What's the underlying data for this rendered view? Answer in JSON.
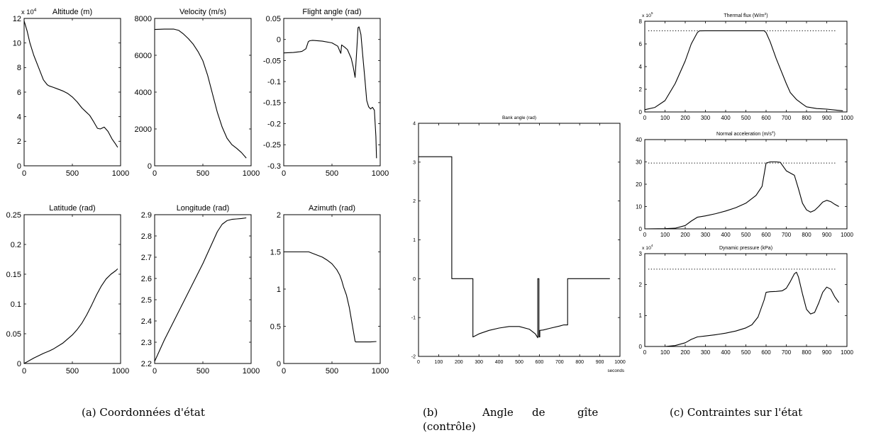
{
  "captions": {
    "a": "(a) Coordonnées d'état",
    "b_1": "(b)",
    "b_2": "Angle",
    "b_3": "de",
    "b_4": "gîte",
    "b_5": "(contrôle)",
    "c": "(c) Contraintes sur l'état"
  },
  "chart_data": [
    {
      "id": "altitude",
      "type": "line",
      "title": "Altitude (m)",
      "xlim": [
        0,
        1000
      ],
      "ylim": [
        0,
        120000
      ],
      "scale_label": "x 10",
      "scale_exp": "4",
      "xticks": [
        0,
        500,
        1000
      ],
      "xtick_labels": [
        "0",
        "500",
        "1000"
      ],
      "yticks": [
        0,
        20000,
        40000,
        60000,
        80000,
        100000,
        120000
      ],
      "ytick_labels": [
        "0",
        "2",
        "4",
        "6",
        "8",
        "10",
        "12"
      ],
      "x": [
        0,
        30,
        60,
        100,
        150,
        200,
        240,
        260,
        300,
        350,
        400,
        450,
        500,
        550,
        580,
        600,
        640,
        680,
        720,
        760,
        790,
        830,
        870,
        910,
        950,
        970
      ],
      "y": [
        118000,
        110000,
        100000,
        90000,
        80000,
        70000,
        66000,
        65000,
        64000,
        62500,
        61000,
        59000,
        56000,
        52000,
        49000,
        47000,
        44000,
        41000,
        36000,
        30500,
        30000,
        31500,
        28000,
        22000,
        17500,
        15000
      ]
    },
    {
      "id": "velocity",
      "type": "line",
      "title": "Velocity (m/s)",
      "xlim": [
        0,
        1000
      ],
      "ylim": [
        0,
        8000
      ],
      "xticks": [
        0,
        500,
        1000
      ],
      "xtick_labels": [
        "0",
        "500",
        "1000"
      ],
      "yticks": [
        0,
        2000,
        4000,
        6000,
        8000
      ],
      "ytick_labels": [
        "0",
        "2000",
        "4000",
        "6000",
        "8000"
      ],
      "x": [
        0,
        100,
        200,
        250,
        300,
        350,
        400,
        450,
        500,
        550,
        600,
        650,
        700,
        750,
        800,
        850,
        900,
        950
      ],
      "y": [
        7400,
        7420,
        7420,
        7350,
        7150,
        6900,
        6600,
        6200,
        5700,
        4900,
        3900,
        2900,
        2100,
        1500,
        1150,
        950,
        720,
        420
      ]
    },
    {
      "id": "flight_angle",
      "type": "line",
      "title": "Flight angle (rad)",
      "xlim": [
        0,
        1000
      ],
      "ylim": [
        -0.3,
        0.05
      ],
      "xticks": [
        0,
        500,
        1000
      ],
      "xtick_labels": [
        "0",
        "500",
        "1000"
      ],
      "yticks": [
        -0.3,
        -0.25,
        -0.2,
        -0.15,
        -0.1,
        -0.05,
        0,
        0.05
      ],
      "ytick_labels": [
        "-0.3",
        "-0.25",
        "-0.2",
        "-0.15",
        "-0.1",
        "-0.05",
        "0",
        "0.05"
      ],
      "x": [
        0,
        100,
        170,
        190,
        230,
        255,
        270,
        300,
        400,
        500,
        560,
        585,
        592,
        600,
        630,
        660,
        700,
        720,
        740,
        760,
        770,
        780,
        800,
        820,
        840,
        860,
        880,
        900,
        920,
        940,
        955,
        962
      ],
      "y": [
        -0.032,
        -0.031,
        -0.029,
        -0.028,
        -0.022,
        -0.005,
        -0.003,
        -0.002,
        -0.004,
        -0.008,
        -0.016,
        -0.03,
        -0.033,
        -0.013,
        -0.018,
        -0.024,
        -0.045,
        -0.065,
        -0.09,
        -0.012,
        0.028,
        0.03,
        0.012,
        -0.04,
        -0.09,
        -0.145,
        -0.16,
        -0.165,
        -0.161,
        -0.168,
        -0.23,
        -0.282
      ]
    },
    {
      "id": "latitude",
      "type": "line",
      "title": "Latitude (rad)",
      "xlim": [
        0,
        1000
      ],
      "ylim": [
        0,
        0.25
      ],
      "xticks": [
        0,
        500,
        1000
      ],
      "xtick_labels": [
        "0",
        "500",
        "1000"
      ],
      "yticks": [
        0,
        0.05,
        0.1,
        0.15,
        0.2,
        0.25
      ],
      "ytick_labels": [
        "0",
        "0.05",
        "0.1",
        "0.15",
        "0.2",
        "0.25"
      ],
      "x": [
        0,
        100,
        200,
        260,
        300,
        400,
        500,
        550,
        600,
        650,
        700,
        750,
        800,
        850,
        900,
        950,
        970
      ],
      "y": [
        0,
        0.009,
        0.017,
        0.021,
        0.024,
        0.034,
        0.048,
        0.057,
        0.068,
        0.082,
        0.098,
        0.115,
        0.13,
        0.142,
        0.15,
        0.156,
        0.159
      ]
    },
    {
      "id": "longitude",
      "type": "line",
      "title": "Longitude (rad)",
      "xlim": [
        0,
        1000
      ],
      "ylim": [
        2.2,
        2.9
      ],
      "xticks": [
        0,
        500,
        1000
      ],
      "xtick_labels": [
        "0",
        "500",
        "1000"
      ],
      "yticks": [
        2.2,
        2.3,
        2.4,
        2.5,
        2.6,
        2.7,
        2.8,
        2.9
      ],
      "ytick_labels": [
        "2.2",
        "2.3",
        "2.4",
        "2.5",
        "2.6",
        "2.7",
        "2.8",
        "2.9"
      ],
      "x": [
        0,
        100,
        200,
        300,
        400,
        500,
        550,
        600,
        650,
        700,
        750,
        800,
        850,
        900,
        950
      ],
      "y": [
        2.21,
        2.31,
        2.4,
        2.49,
        2.58,
        2.67,
        2.72,
        2.77,
        2.82,
        2.855,
        2.872,
        2.878,
        2.88,
        2.882,
        2.885
      ]
    },
    {
      "id": "azimuth",
      "type": "line",
      "title": "Azimuth (rad)",
      "xlim": [
        0,
        1000
      ],
      "ylim": [
        0,
        2
      ],
      "xticks": [
        0,
        500,
        1000
      ],
      "xtick_labels": [
        "0",
        "500",
        "1000"
      ],
      "yticks": [
        0,
        0.5,
        1,
        1.5,
        2
      ],
      "ytick_labels": [
        "0",
        "0.5",
        "1",
        "1.5",
        "2"
      ],
      "x": [
        0,
        100,
        200,
        260,
        300,
        400,
        450,
        500,
        550,
        580,
        600,
        620,
        650,
        680,
        700,
        720,
        740,
        745,
        800,
        900,
        960
      ],
      "y": [
        1.5,
        1.5,
        1.5,
        1.5,
        1.48,
        1.43,
        1.39,
        1.34,
        1.26,
        1.19,
        1.12,
        1.03,
        0.92,
        0.75,
        0.6,
        0.45,
        0.3,
        0.29,
        0.29,
        0.29,
        0.295
      ]
    },
    {
      "id": "bank_angle",
      "type": "line",
      "title": "Bank angle (rad)",
      "xlim": [
        0,
        1000
      ],
      "ylim": [
        -2,
        4
      ],
      "xlabel": "seconds",
      "xticks": [
        0,
        100,
        200,
        300,
        400,
        500,
        600,
        700,
        800,
        900,
        1000
      ],
      "xtick_labels": [
        "0",
        "100",
        "200",
        "300",
        "400",
        "500",
        "600",
        "700",
        "800",
        "900",
        "1000"
      ],
      "yticks": [
        -2,
        -1,
        0,
        1,
        2,
        3,
        4
      ],
      "ytick_labels": [
        "-2",
        "-1",
        "0",
        "1",
        "2",
        "3",
        "4"
      ],
      "x": [
        0,
        165,
        165,
        270,
        270,
        300,
        350,
        400,
        450,
        500,
        550,
        580,
        592,
        592,
        598,
        598,
        602,
        602,
        620,
        650,
        700,
        720,
        740,
        740,
        950
      ],
      "y": [
        3.14,
        3.14,
        0,
        0,
        -1.5,
        -1.42,
        -1.33,
        -1.27,
        -1.23,
        -1.23,
        -1.3,
        -1.42,
        -1.52,
        0,
        0,
        -1.5,
        -1.5,
        -1.33,
        -1.32,
        -1.28,
        -1.22,
        -1.19,
        -1.19,
        0,
        0
      ]
    },
    {
      "id": "thermal_flux",
      "type": "line",
      "title": "Thermal flux (W/m",
      "title_sup": "2",
      "title_end": ")",
      "xlim": [
        0,
        1000
      ],
      "ylim": [
        0,
        800000
      ],
      "scale_label": "x 10",
      "scale_exp": "5",
      "xticks": [
        0,
        100,
        200,
        300,
        400,
        500,
        600,
        700,
        800,
        900,
        1000
      ],
      "xtick_labels": [
        "0",
        "100",
        "200",
        "300",
        "400",
        "500",
        "600",
        "700",
        "800",
        "900",
        "1000"
      ],
      "yticks": [
        0,
        200000,
        400000,
        600000,
        800000
      ],
      "ytick_labels": [
        "0",
        "2",
        "4",
        "6",
        "8"
      ],
      "constraint": 716000,
      "x": [
        0,
        50,
        100,
        150,
        200,
        230,
        260,
        270,
        300,
        400,
        500,
        590,
        600,
        620,
        650,
        700,
        720,
        750,
        780,
        800,
        850,
        900,
        950,
        980
      ],
      "y": [
        20000,
        40000,
        100000,
        250000,
        450000,
        600000,
        700000,
        715000,
        716000,
        716000,
        716000,
        716000,
        700000,
        620000,
        470000,
        250000,
        170000,
        110000,
        70000,
        45000,
        30000,
        25000,
        15000,
        10000
      ]
    },
    {
      "id": "normal_acceleration",
      "type": "line",
      "title": "Normal acceleration (m/s",
      "title_sup": "2",
      "title_end": ")",
      "xlim": [
        0,
        1000
      ],
      "ylim": [
        0,
        40
      ],
      "xticks": [
        0,
        100,
        200,
        300,
        400,
        500,
        600,
        700,
        800,
        900,
        1000
      ],
      "xtick_labels": [
        "0",
        "100",
        "200",
        "300",
        "400",
        "500",
        "600",
        "700",
        "800",
        "900",
        "1000"
      ],
      "yticks": [
        0,
        10,
        20,
        30,
        40
      ],
      "ytick_labels": [
        "0",
        "10",
        "20",
        "30",
        "40"
      ],
      "constraint": 29.5,
      "x": [
        0,
        100,
        150,
        200,
        230,
        260,
        300,
        350,
        400,
        450,
        500,
        550,
        580,
        600,
        620,
        650,
        670,
        700,
        740,
        760,
        780,
        800,
        820,
        840,
        860,
        880,
        900,
        920,
        940,
        960
      ],
      "y": [
        0,
        0.1,
        0.3,
        1.5,
        3.5,
        5.2,
        5.8,
        6.8,
        8.0,
        9.5,
        11.5,
        15.0,
        19.0,
        29.5,
        30.0,
        30.0,
        29.8,
        26.0,
        24.0,
        18.0,
        11.5,
        8.5,
        7.5,
        8.3,
        10.0,
        12.0,
        12.8,
        12.2,
        11.0,
        10.0
      ]
    },
    {
      "id": "dynamic_pressure",
      "type": "line",
      "title": "Dynamic pressure (kPa)",
      "xlim": [
        0,
        1000
      ],
      "ylim": [
        0,
        30000
      ],
      "scale_label": "x 10",
      "scale_exp": "4",
      "xticks": [
        0,
        100,
        200,
        300,
        400,
        500,
        600,
        700,
        800,
        900,
        1000
      ],
      "xtick_labels": [
        "0",
        "100",
        "200",
        "300",
        "400",
        "500",
        "600",
        "700",
        "800",
        "900",
        "1000"
      ],
      "yticks": [
        0,
        10000,
        20000,
        30000
      ],
      "ytick_labels": [
        "0",
        "1",
        "2",
        "3"
      ],
      "constraint": 25000,
      "x": [
        0,
        100,
        150,
        200,
        230,
        260,
        300,
        350,
        400,
        450,
        500,
        530,
        560,
        590,
        600,
        620,
        650,
        680,
        700,
        720,
        740,
        750,
        760,
        780,
        800,
        820,
        840,
        860,
        880,
        900,
        920,
        940,
        960
      ],
      "y": [
        0,
        0,
        300,
        1200,
        2300,
        3100,
        3400,
        3800,
        4300,
        5000,
        6000,
        7000,
        9500,
        15000,
        17500,
        17700,
        17800,
        18000,
        18800,
        21000,
        23500,
        24000,
        22500,
        17000,
        12000,
        10500,
        11000,
        14000,
        17500,
        19200,
        18500,
        16000,
        14200
      ]
    }
  ]
}
